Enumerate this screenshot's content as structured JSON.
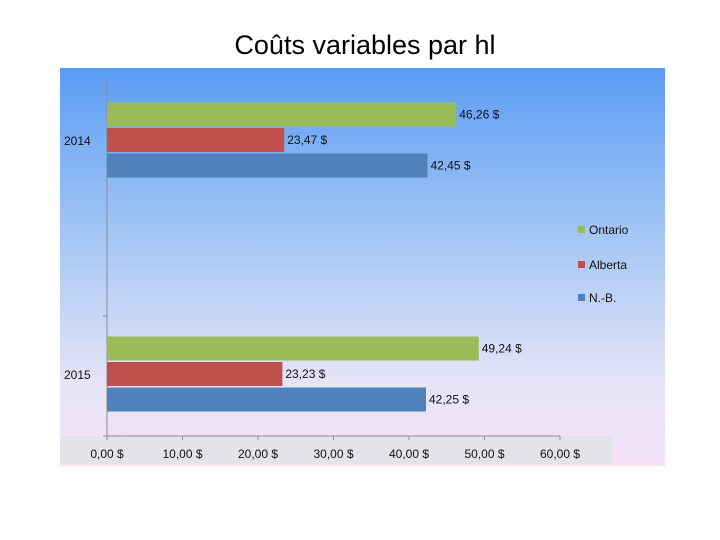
{
  "chart_data": {
    "type": "bar",
    "orientation": "horizontal",
    "title": "Coûts variables par hl",
    "categories": [
      "2014",
      "2015"
    ],
    "series": [
      {
        "name": "Ontario",
        "color": "#9bbb59",
        "values": [
          46.26,
          49.24
        ],
        "labels": [
          "46,26 $",
          "49,24 $"
        ]
      },
      {
        "name": "Alberta",
        "color": "#c0504d",
        "values": [
          23.47,
          23.23
        ],
        "labels": [
          "23,47 $",
          "23,23 $"
        ]
      },
      {
        "name": "N.-B.",
        "color": "#4f81bd",
        "values": [
          42.45,
          42.25
        ],
        "labels": [
          "42,45 $",
          "42,25 $"
        ]
      }
    ],
    "x_ticks": [
      0,
      10,
      20,
      30,
      40,
      50,
      60
    ],
    "x_tick_labels": [
      "0,00 $",
      "10,00 $",
      "20,00 $",
      "30,00 $",
      "40,00 $",
      "50,00 $",
      "60,00 $"
    ],
    "xlim": [
      0,
      60
    ],
    "legend_position": "right",
    "grid": false
  }
}
